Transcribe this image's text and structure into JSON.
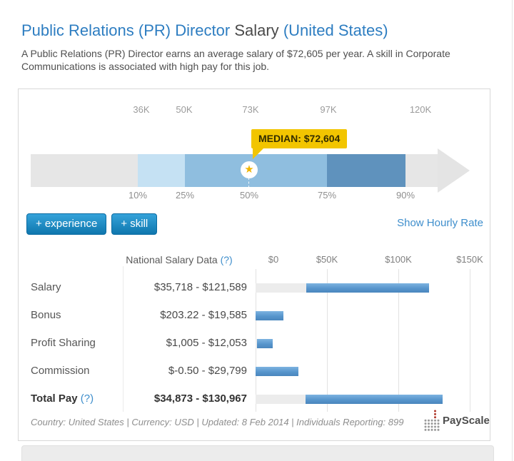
{
  "header": {
    "title_job": "Public Relations (PR) Director",
    "title_salary": "Salary",
    "title_region": "(United States)",
    "subtitle": "A Public Relations (PR) Director earns an average salary of $72,605 per year. A skill in Corporate Communications is associated with high pay for this job."
  },
  "percentile_chart": {
    "ticks": [
      "36K",
      "50K",
      "73K",
      "97K",
      "120K"
    ],
    "percentiles": [
      "10%",
      "25%",
      "50%",
      "75%",
      "90%"
    ],
    "median_tooltip": "MEDIAN: $72,604",
    "star_icon": "★"
  },
  "actions": {
    "experience_button": "+ experience",
    "skill_button": "+ skill",
    "hourly_rate_link": "Show Hourly Rate"
  },
  "table": {
    "header_label": "National Salary Data",
    "header_help": "(?)",
    "axis": [
      "$0",
      "$50K",
      "$100K",
      "$150K"
    ],
    "rows": [
      {
        "label": "Salary",
        "range": "$35,718 - $121,589",
        "min": 35718,
        "max": 121589
      },
      {
        "label": "Bonus",
        "range": "$203.22 - $19,585",
        "min": 203.22,
        "max": 19585
      },
      {
        "label": "Profit Sharing",
        "range": "$1,005 - $12,053",
        "min": 1005,
        "max": 12053
      },
      {
        "label": "Commission",
        "range": "$-0.50 - $29,799",
        "min": -0.5,
        "max": 29799
      },
      {
        "label": "Total Pay",
        "help": "(?)",
        "range": "$34,873 - $130,967",
        "min": 34873,
        "max": 130967
      }
    ]
  },
  "footer": {
    "meta": "Country: United States | Currency: USD | Updated: 8 Feb 2014 | Individuals Reporting: 899",
    "brand": "PayScale"
  },
  "colors": {
    "accent_blue": "#2d7dc1",
    "bar_blue": "#5795cc",
    "median_yellow": "#f2c500",
    "button_blue": "#0f77ae",
    "range_light": "#c5e1f3",
    "range_mid": "#8fbedf",
    "range_dark": "#5f92bd"
  },
  "chart_data": [
    {
      "type": "bar",
      "title": "Salary percentile range (annual, USD)",
      "orientation": "horizontal",
      "tick_labels": [
        "36K",
        "50K",
        "73K",
        "97K",
        "120K"
      ],
      "percentile_labels": [
        "10%",
        "25%",
        "50%",
        "75%",
        "90%"
      ],
      "percentile_values": [
        36000,
        50000,
        73000,
        97000,
        120000
      ],
      "median": 72604,
      "annotations": [
        "MEDIAN: $72,604"
      ]
    },
    {
      "type": "bar",
      "title": "National Salary Data",
      "orientation": "horizontal",
      "xlim": [
        0,
        150000
      ],
      "x_ticks": [
        "$0",
        "$50K",
        "$100K",
        "$150K"
      ],
      "grid": true,
      "categories": [
        "Salary",
        "Bonus",
        "Profit Sharing",
        "Commission",
        "Total Pay"
      ],
      "series": [
        {
          "name": "range_min",
          "values": [
            35718,
            203.22,
            1005,
            -0.5,
            34873
          ]
        },
        {
          "name": "range_max",
          "values": [
            121589,
            19585,
            12053,
            29799,
            130967
          ]
        }
      ]
    }
  ]
}
